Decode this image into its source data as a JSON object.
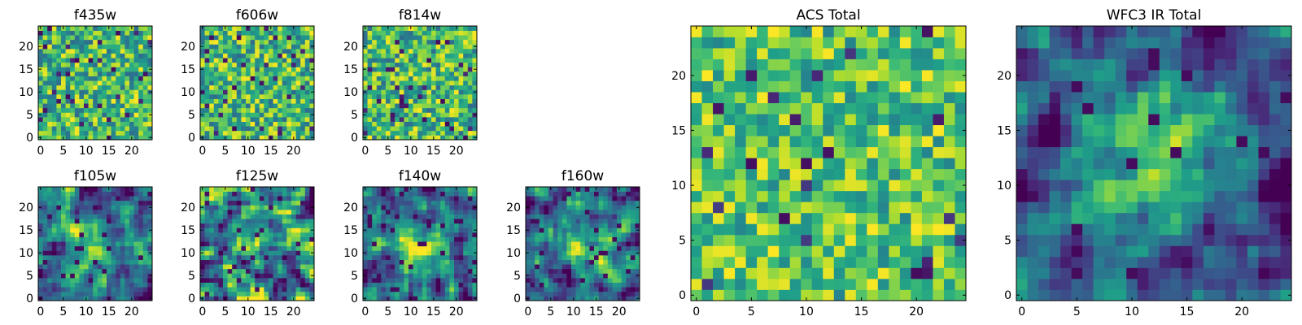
{
  "figure": {
    "panels_count": 9
  },
  "chart_data": [
    {
      "type": "heatmap",
      "title": "f435w",
      "grid_size": 25,
      "xlim": [
        -0.5,
        24.5
      ],
      "ylim": [
        -0.5,
        24.5
      ],
      "x_ticks": [
        0,
        5,
        10,
        15,
        20
      ],
      "y_ticks": [
        0,
        5,
        10,
        15,
        20
      ],
      "colormap": "viridis",
      "pattern": "uniform-noise",
      "seed": 11,
      "grid": false
    },
    {
      "type": "heatmap",
      "title": "f606w",
      "grid_size": 25,
      "xlim": [
        -0.5,
        24.5
      ],
      "ylim": [
        -0.5,
        24.5
      ],
      "x_ticks": [
        0,
        5,
        10,
        15,
        20
      ],
      "y_ticks": [
        0,
        5,
        10,
        15,
        20
      ],
      "colormap": "viridis",
      "pattern": "uniform-noise",
      "seed": 23,
      "grid": false
    },
    {
      "type": "heatmap",
      "title": "f814w",
      "grid_size": 25,
      "xlim": [
        -0.5,
        24.5
      ],
      "ylim": [
        -0.5,
        24.5
      ],
      "x_ticks": [
        0,
        5,
        10,
        15,
        20
      ],
      "y_ticks": [
        0,
        5,
        10,
        15,
        20
      ],
      "colormap": "viridis",
      "pattern": "uniform-noise",
      "seed": 37,
      "grid": false
    },
    {
      "type": "heatmap",
      "title": "f105w",
      "grid_size": 25,
      "xlim": [
        -0.5,
        24.5
      ],
      "ylim": [
        -0.5,
        24.5
      ],
      "x_ticks": [
        0,
        5,
        10,
        15,
        20
      ],
      "y_ticks": [
        0,
        5,
        10,
        15,
        20
      ],
      "colormap": "viridis",
      "pattern": "smooth-source-center",
      "seed": 41,
      "grid": false
    },
    {
      "type": "heatmap",
      "title": "f125w",
      "grid_size": 25,
      "xlim": [
        -0.5,
        24.5
      ],
      "ylim": [
        -0.5,
        24.5
      ],
      "x_ticks": [
        0,
        5,
        10,
        15,
        20
      ],
      "y_ticks": [
        0,
        5,
        10,
        15,
        20
      ],
      "colormap": "viridis",
      "pattern": "smooth-noise",
      "seed": 53,
      "grid": false
    },
    {
      "type": "heatmap",
      "title": "f140w",
      "grid_size": 25,
      "xlim": [
        -0.5,
        24.5
      ],
      "ylim": [
        -0.5,
        24.5
      ],
      "x_ticks": [
        0,
        5,
        10,
        15,
        20
      ],
      "y_ticks": [
        0,
        5,
        10,
        15,
        20
      ],
      "colormap": "viridis",
      "pattern": "smooth-source-center",
      "seed": 67,
      "grid": false
    },
    {
      "type": "heatmap",
      "title": "f160w",
      "grid_size": 25,
      "xlim": [
        -0.5,
        24.5
      ],
      "ylim": [
        -0.5,
        24.5
      ],
      "x_ticks": [
        0,
        5,
        10,
        15,
        20
      ],
      "y_ticks": [
        0,
        5,
        10,
        15,
        20
      ],
      "colormap": "viridis",
      "pattern": "smooth-source-center",
      "seed": 79,
      "grid": false
    },
    {
      "type": "heatmap",
      "title": "ACS Total",
      "grid_size": 25,
      "xlim": [
        -0.5,
        24.5
      ],
      "ylim": [
        -0.5,
        24.5
      ],
      "x_ticks": [
        0,
        5,
        10,
        15,
        20
      ],
      "y_ticks": [
        0,
        5,
        10,
        15,
        20
      ],
      "colormap": "viridis",
      "pattern": "uniform-noise-bright",
      "seed": 97,
      "grid": false
    },
    {
      "type": "heatmap",
      "title": "WFC3 IR Total",
      "grid_size": 25,
      "xlim": [
        -0.5,
        24.5
      ],
      "ylim": [
        -0.5,
        24.5
      ],
      "x_ticks": [
        0,
        5,
        10,
        15,
        20
      ],
      "y_ticks": [
        0,
        5,
        10,
        15,
        20
      ],
      "colormap": "viridis",
      "pattern": "strong-source-center",
      "seed": 113,
      "grid": false
    }
  ]
}
